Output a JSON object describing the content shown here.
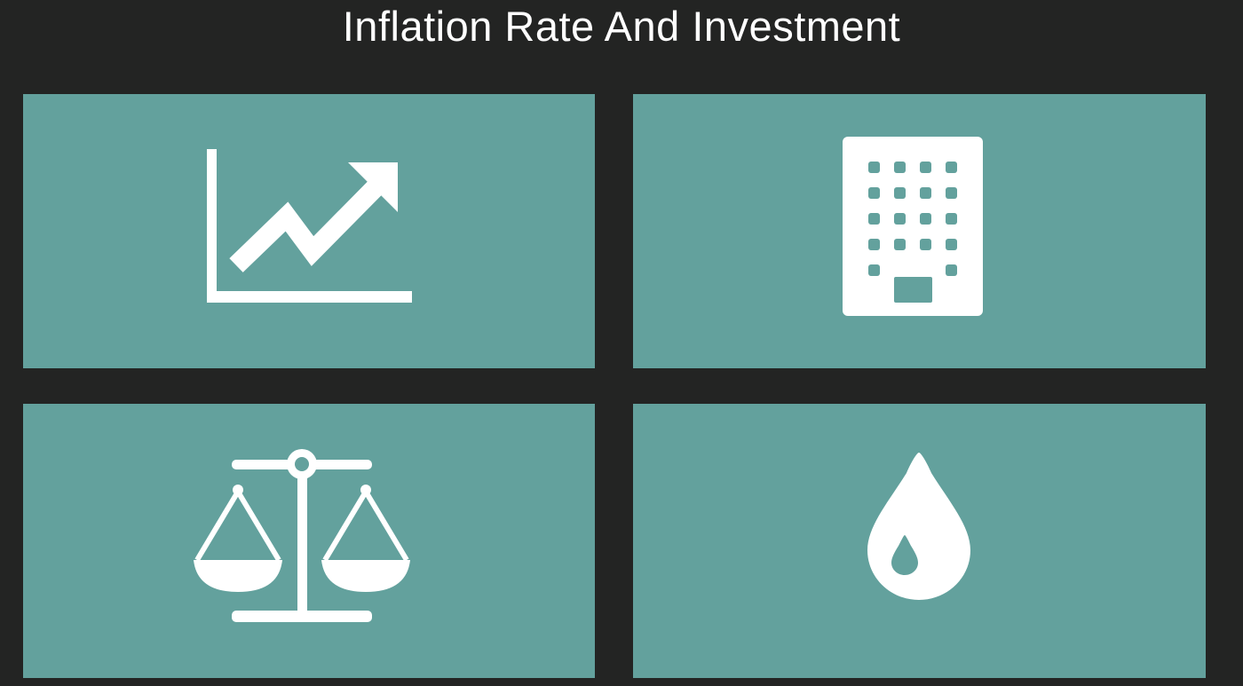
{
  "slide": {
    "title": "Inflation Rate And Investment"
  },
  "tiles": [
    {
      "icon": "growth-chart-icon"
    },
    {
      "icon": "office-building-icon"
    },
    {
      "icon": "balance-scale-icon"
    },
    {
      "icon": "oil-drop-icon"
    }
  ],
  "colors": {
    "background": "#232423",
    "tile": "#63a19d",
    "icon": "#ffffff",
    "title": "#ffffff"
  }
}
